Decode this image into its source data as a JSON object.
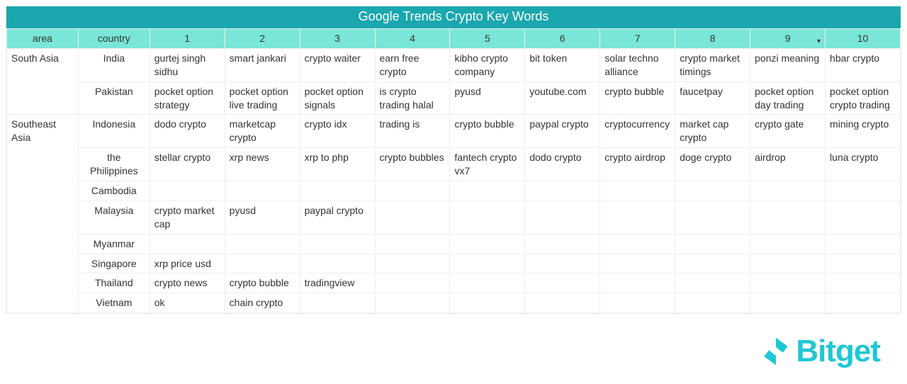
{
  "title": "Google Trends Crypto Key Words",
  "colors": {
    "title_bg": "#1aa7ae",
    "header_bg": "#79e6d7",
    "border": "#eeeeee",
    "text": "#333333",
    "logo": "#1fc7d4"
  },
  "columns": {
    "area": {
      "label": "area",
      "width_pct": 8.0
    },
    "country": {
      "label": "country",
      "width_pct": 8.0
    },
    "ranks": [
      {
        "label": "1",
        "width_pct": 8.4
      },
      {
        "label": "2",
        "width_pct": 8.4
      },
      {
        "label": "3",
        "width_pct": 8.4
      },
      {
        "label": "4",
        "width_pct": 8.4
      },
      {
        "label": "5",
        "width_pct": 8.4
      },
      {
        "label": "6",
        "width_pct": 8.4
      },
      {
        "label": "7",
        "width_pct": 8.4
      },
      {
        "label": "8",
        "width_pct": 8.4
      },
      {
        "label": "9",
        "width_pct": 8.4,
        "sort_indicator": "▾"
      },
      {
        "label": "10",
        "width_pct": 8.4
      }
    ]
  },
  "areas": [
    {
      "name": "South Asia",
      "rows": [
        {
          "country": "India",
          "cells": [
            "gurtej singh sidhu",
            "smart jankari",
            "crypto waiter",
            "earn free crypto",
            "kibho crypto company",
            "bit token",
            "solar techno alliance",
            "crypto market timings",
            "ponzi meaning",
            "hbar crypto"
          ]
        },
        {
          "country": "Pakistan",
          "cells": [
            "pocket option strategy",
            "pocket option live trading",
            "pocket option signals",
            "is crypto trading halal",
            "pyusd",
            "youtube.com",
            "crypto bubble",
            "faucetpay",
            "pocket option day trading",
            "pocket option crypto trading"
          ]
        }
      ]
    },
    {
      "name": "Southeast Asia",
      "rows": [
        {
          "country": "Indonesia",
          "cells": [
            "dodo crypto",
            "marketcap crypto",
            "crypto idx",
            "trading is",
            "crypto bubble",
            "paypal crypto",
            "cryptocurrency",
            "market cap crypto",
            "crypto gate",
            "mining crypto"
          ]
        },
        {
          "country": "the Philippines",
          "cells": [
            "stellar crypto",
            "xrp news",
            "xrp to php",
            "crypto bubbles",
            "fantech crypto vx7",
            "dodo crypto",
            "crypto airdrop",
            "doge crypto",
            "airdrop",
            "luna crypto"
          ]
        },
        {
          "country": "Cambodia",
          "cells": [
            "",
            "",
            "",
            "",
            "",
            "",
            "",
            "",
            "",
            ""
          ]
        },
        {
          "country": "Malaysia",
          "cells": [
            "crypto market cap",
            "pyusd",
            "paypal crypto",
            "",
            "",
            "",
            "",
            "",
            "",
            ""
          ]
        },
        {
          "country": "Myanmar",
          "cells": [
            "",
            "",
            "",
            "",
            "",
            "",
            "",
            "",
            "",
            ""
          ]
        },
        {
          "country": "Singapore",
          "cells": [
            "xrp price usd",
            "",
            "",
            "",
            "",
            "",
            "",
            "",
            "",
            ""
          ]
        },
        {
          "country": "Thailand",
          "cells": [
            "crypto news",
            "crypto bubble",
            "tradingview",
            "",
            "",
            "",
            "",
            "",
            "",
            ""
          ]
        },
        {
          "country": "Vietnam",
          "cells": [
            "ok",
            "chain crypto",
            "",
            "",
            "",
            "",
            "",
            "",
            "",
            ""
          ]
        }
      ]
    }
  ],
  "logo": {
    "text": "Bitget"
  }
}
